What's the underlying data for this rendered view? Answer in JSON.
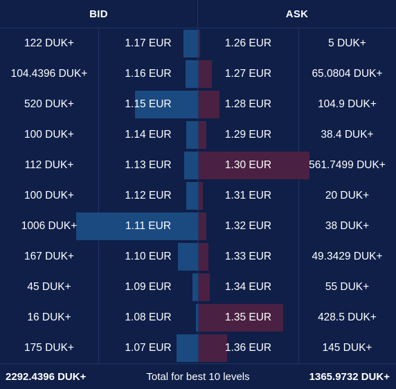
{
  "header": {
    "bid_label": "BID",
    "ask_label": "ASK"
  },
  "colors": {
    "background": "#0f1f48",
    "bid_bar": "#1a4a80",
    "ask_bar": "#4a2142",
    "divider": "#1e3366"
  },
  "bids": [
    {
      "qty": "122 DUK+",
      "price": "1.17 EUR",
      "depth": 0.122
    },
    {
      "qty": "104.4396 DUK+",
      "price": "1.16 EUR",
      "depth": 0.104
    },
    {
      "qty": "520 DUK+",
      "price": "1.15 EUR",
      "depth": 0.517
    },
    {
      "qty": "100 DUK+",
      "price": "1.14 EUR",
      "depth": 0.099
    },
    {
      "qty": "112 DUK+",
      "price": "1.13 EUR",
      "depth": 0.111
    },
    {
      "qty": "100 DUK+",
      "price": "1.12 EUR",
      "depth": 0.099
    },
    {
      "qty": "1006 DUK+",
      "price": "1.11 EUR",
      "depth": 1.0
    },
    {
      "qty": "167 DUK+",
      "price": "1.10 EUR",
      "depth": 0.166
    },
    {
      "qty": "45 DUK+",
      "price": "1.09 EUR",
      "depth": 0.045
    },
    {
      "qty": "16 DUK+",
      "price": "1.08 EUR",
      "depth": 0.016
    },
    {
      "qty": "175 DUK+",
      "price": "1.07 EUR",
      "depth": 0.174
    }
  ],
  "asks": [
    {
      "price": "1.26 EUR",
      "qty": "5 DUK+",
      "depth": 0.009
    },
    {
      "price": "1.27 EUR",
      "qty": "65.0804 DUK+",
      "depth": 0.116
    },
    {
      "price": "1.28 EUR",
      "qty": "104.9 DUK+",
      "depth": 0.187
    },
    {
      "price": "1.29 EUR",
      "qty": "38.4 DUK+",
      "depth": 0.068
    },
    {
      "price": "1.30 EUR",
      "qty": "561.7499 DUK+",
      "depth": 1.0
    },
    {
      "price": "1.31 EUR",
      "qty": "20 DUK+",
      "depth": 0.036
    },
    {
      "price": "1.32 EUR",
      "qty": "38 DUK+",
      "depth": 0.068
    },
    {
      "price": "1.33 EUR",
      "qty": "49.3429 DUK+",
      "depth": 0.088
    },
    {
      "price": "1.34 EUR",
      "qty": "55 DUK+",
      "depth": 0.098
    },
    {
      "price": "1.35 EUR",
      "qty": "428.5 DUK+",
      "depth": 0.763
    },
    {
      "price": "1.36 EUR",
      "qty": "145 DUK+",
      "depth": 0.258
    }
  ],
  "footer": {
    "bid_total": "2292.4396 DUK+",
    "label": "Total for best 10 levels",
    "ask_total": "1365.9732 DUK+"
  }
}
